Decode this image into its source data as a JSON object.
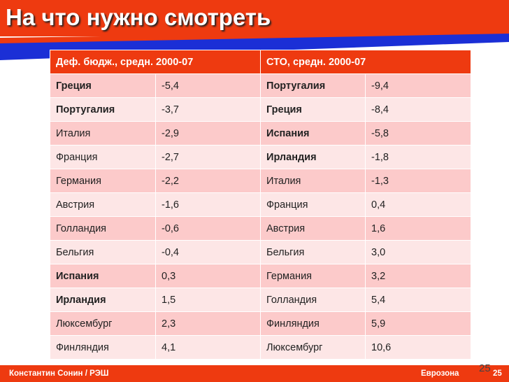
{
  "slide": {
    "title": "На что нужно смотреть",
    "page_number": "25"
  },
  "colors": {
    "accent_red": "#ee3a10",
    "stripe_blue": "#1b2fd6",
    "row_dark": "#fccaca",
    "row_light": "#fde6e6"
  },
  "table": {
    "headers": [
      "Деф. бюдж., средн. 2000-07",
      "СТО, средн. 2000-07"
    ],
    "rows": [
      {
        "c1": "Греция",
        "v1": "-5,4",
        "c2": "Португалия",
        "v2": "-9,4",
        "b1": true,
        "b2": true
      },
      {
        "c1": "Португалия",
        "v1": "-3,7",
        "c2": "Греция",
        "v2": "-8,4",
        "b1": true,
        "b2": true
      },
      {
        "c1": "Италия",
        "v1": "-2,9",
        "c2": "Испания",
        "v2": "-5,8",
        "b1": false,
        "b2": true
      },
      {
        "c1": "Франция",
        "v1": "-2,7",
        "c2": "Ирландия",
        "v2": "-1,8",
        "b1": false,
        "b2": true
      },
      {
        "c1": "Германия",
        "v1": "-2,2",
        "c2": "Италия",
        "v2": "-1,3",
        "b1": false,
        "b2": false
      },
      {
        "c1": "Австрия",
        "v1": "-1,6",
        "c2": "Франция",
        "v2": "0,4",
        "b1": false,
        "b2": false
      },
      {
        "c1": "Голландия",
        "v1": "-0,6",
        "c2": "Австрия",
        "v2": "1,6",
        "b1": false,
        "b2": false
      },
      {
        "c1": "Бельгия",
        "v1": "-0,4",
        "c2": "Бельгия",
        "v2": "3,0",
        "b1": false,
        "b2": false
      },
      {
        "c1": "Испания",
        "v1": "0,3",
        "c2": "Германия",
        "v2": "3,2",
        "b1": true,
        "b2": false
      },
      {
        "c1": "Ирландия",
        "v1": "1,5",
        "c2": "Голландия",
        "v2": "5,4",
        "b1": true,
        "b2": false
      },
      {
        "c1": "Люксембург",
        "v1": "2,3",
        "c2": "Финляндия",
        "v2": "5,9",
        "b1": false,
        "b2": false
      },
      {
        "c1": "Финляндия",
        "v1": "4,1",
        "c2": "Люксембург",
        "v2": "10,6",
        "b1": false,
        "b2": false
      }
    ]
  },
  "footer": {
    "author": "Константин Сонин / РЭШ",
    "topic": "Еврозона",
    "number": "25"
  }
}
